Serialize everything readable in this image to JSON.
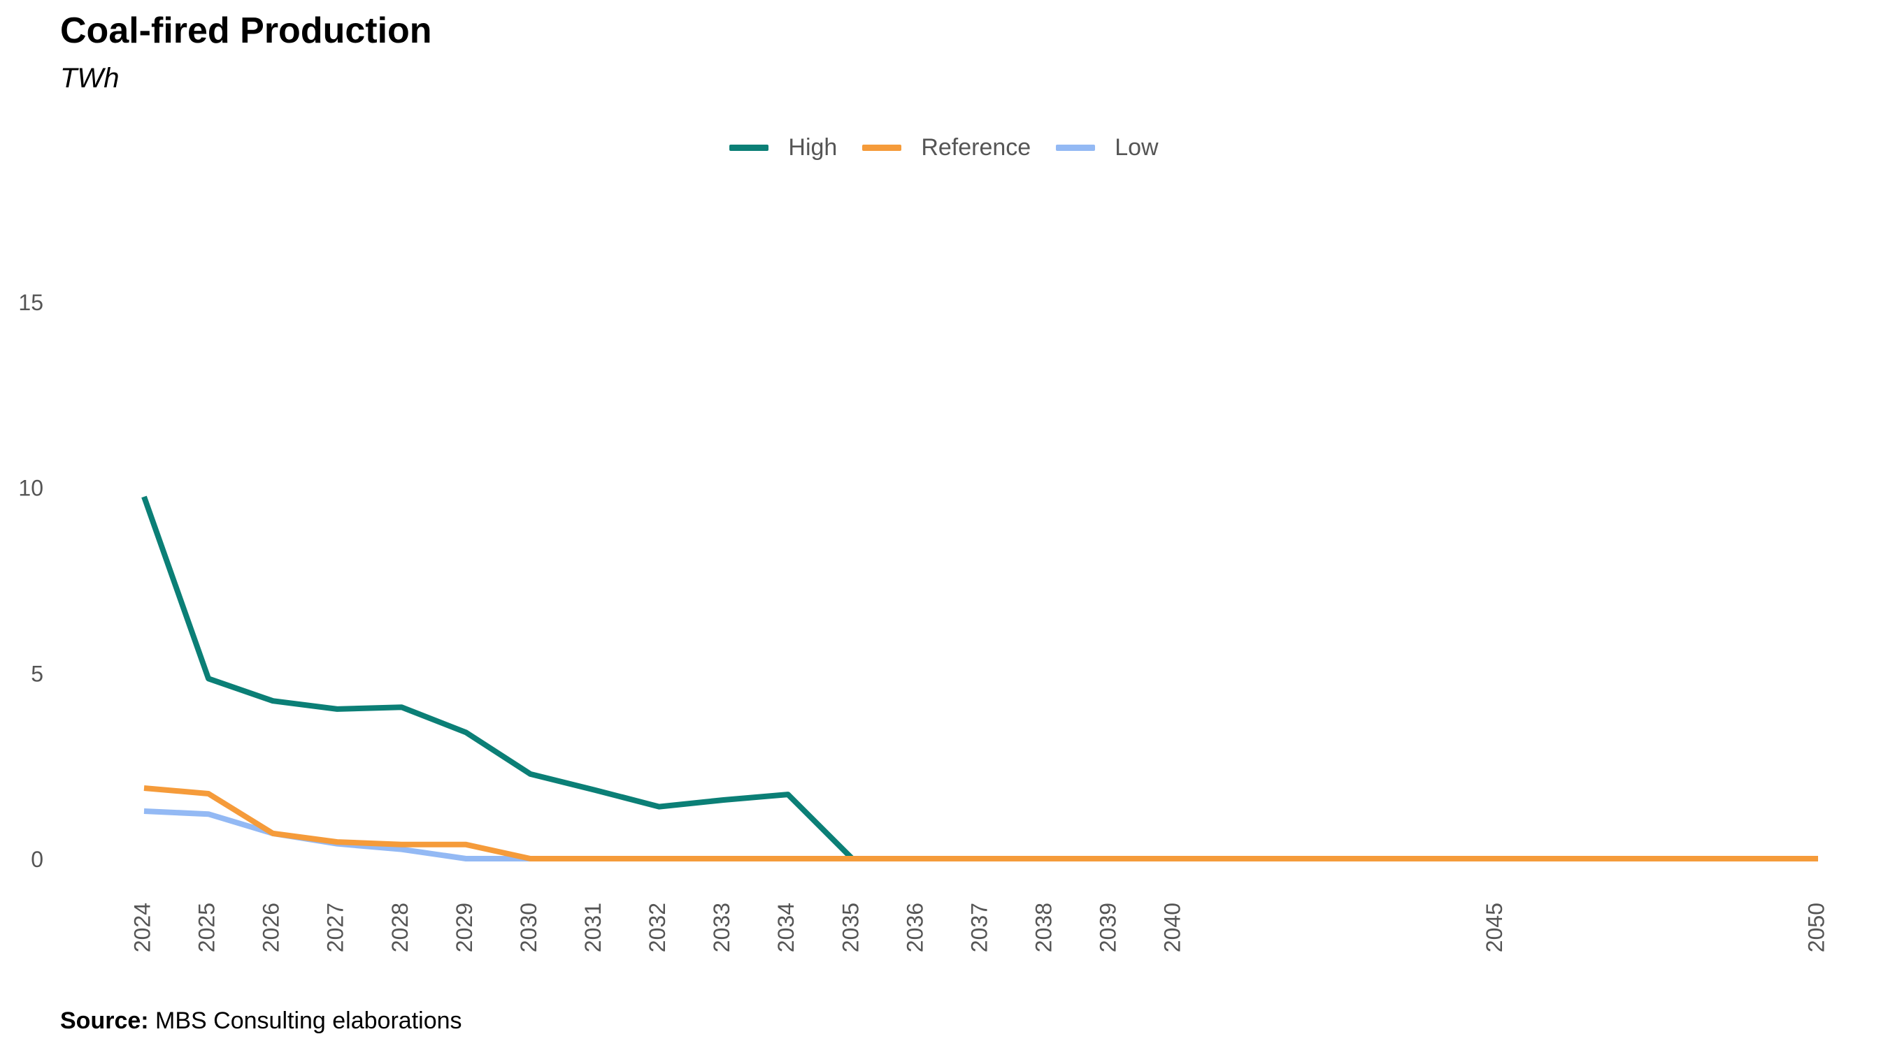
{
  "header": {
    "title": "Coal-fired Production",
    "subtitle": "TWh"
  },
  "footer": {
    "source_label": "Source:",
    "source_text": "MBS Consulting elaborations"
  },
  "chart_data": {
    "type": "line",
    "title": "Coal-fired Production",
    "subtitle": "TWh",
    "xlabel": "",
    "ylabel": "",
    "ylim": [
      0,
      15
    ],
    "yticks": [
      0,
      5,
      10,
      15
    ],
    "xticks": [
      2024,
      2025,
      2026,
      2027,
      2028,
      2029,
      2030,
      2031,
      2032,
      2033,
      2034,
      2035,
      2036,
      2037,
      2038,
      2039,
      2040,
      2045,
      2050
    ],
    "x": [
      2024,
      2025,
      2026,
      2027,
      2028,
      2029,
      2030,
      2031,
      2032,
      2033,
      2034,
      2035,
      2036,
      2037,
      2038,
      2039,
      2040,
      2045,
      2050
    ],
    "grid": false,
    "legend_position": "top-center",
    "series": [
      {
        "name": "High",
        "color": "#0b7f76",
        "values": [
          9.75,
          4.85,
          4.25,
          4.03,
          4.08,
          3.4,
          2.28,
          1.85,
          1.4,
          1.58,
          1.73,
          0.0,
          0.0,
          0.0,
          0.0,
          0.0,
          0.0,
          0.0,
          0.0
        ]
      },
      {
        "name": "Reference",
        "color": "#f59b3a",
        "values": [
          1.9,
          1.75,
          0.68,
          0.45,
          0.38,
          0.38,
          0.0,
          0.0,
          0.0,
          0.0,
          0.0,
          0.0,
          0.0,
          0.0,
          0.0,
          0.0,
          0.0,
          0.0,
          0.0
        ]
      },
      {
        "name": "Low",
        "color": "#93b9f4",
        "values": [
          1.28,
          1.2,
          0.68,
          0.4,
          0.25,
          0.0,
          0.0,
          0.0,
          0.0,
          0.0,
          0.0,
          0.0,
          0.0,
          0.0,
          0.0,
          0.0,
          0.0,
          0.0,
          0.0
        ]
      }
    ]
  }
}
